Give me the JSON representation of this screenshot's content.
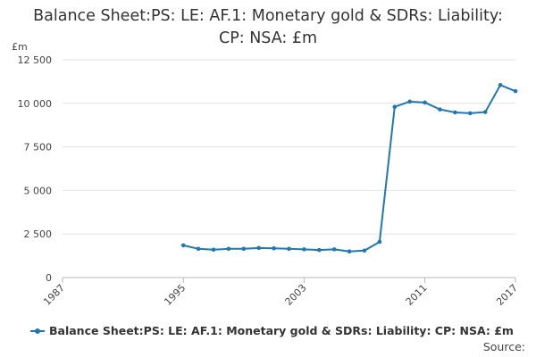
{
  "chart_data": {
    "type": "line",
    "title_lines": [
      "Balance Sheet:PS: LE: AF.1: Monetary gold & SDRs: Liability:",
      "CP: NSA: £m"
    ],
    "ylabel": "£m",
    "xlim": [
      1987,
      2017
    ],
    "ylim": [
      0,
      12500
    ],
    "yticks": [
      0,
      2500,
      5000,
      7500,
      10000,
      12500
    ],
    "ytick_labels": [
      "0",
      "2 500",
      "5 000",
      "7 500",
      "10 000",
      "12 500"
    ],
    "xticks": [
      1987,
      1995,
      2003,
      2011,
      2017
    ],
    "xtick_labels": [
      "1987",
      "1995",
      "2003",
      "2011",
      "2017"
    ],
    "grid": true,
    "color": "#1f77b4",
    "series": [
      {
        "name": "Balance Sheet:PS: LE: AF.1: Monetary gold & SDRs: Liability: CP: NSA: £m",
        "x": [
          1995,
          1996,
          1997,
          1998,
          1999,
          2000,
          2001,
          2002,
          2003,
          2004,
          2005,
          2006,
          2007,
          2008,
          2009,
          2010,
          2011,
          2012,
          2013,
          2014,
          2015,
          2016,
          2017
        ],
        "y": [
          1850,
          1650,
          1600,
          1650,
          1650,
          1700,
          1680,
          1650,
          1620,
          1580,
          1620,
          1500,
          1550,
          2050,
          9800,
          10100,
          10050,
          9650,
          9480,
          9430,
          9500,
          11050,
          10700
        ]
      }
    ],
    "legend": "bottom-left"
  },
  "legend_label": "Balance Sheet:PS: LE: AF.1: Monetary gold & SDRs: Liability: CP: NSA: £m",
  "source_label": "Source:"
}
